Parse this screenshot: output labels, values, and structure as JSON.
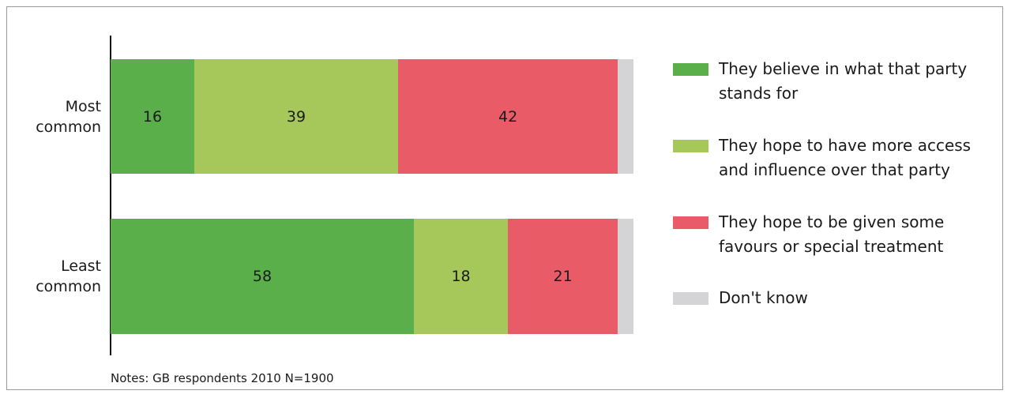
{
  "chart_data": {
    "type": "stacked-barh",
    "categories": [
      "Most common",
      "Least common"
    ],
    "series": [
      {
        "name": "They believe in what that party stands for",
        "color": "#5aaf4b",
        "values": [
          16,
          58
        ]
      },
      {
        "name": "They hope to have more access and influence over that party",
        "color": "#a6c85a",
        "values": [
          39,
          18
        ]
      },
      {
        "name": "They hope to be given some favours or special treatment",
        "color": "#e95c67",
        "values": [
          42,
          21
        ]
      },
      {
        "name": "Don't know",
        "color": "#d4d4d6",
        "values": [
          3,
          3
        ]
      }
    ],
    "xlim": [
      0,
      100
    ],
    "legend": "right",
    "note": "Notes: GB respondents 2010 N=1900"
  }
}
